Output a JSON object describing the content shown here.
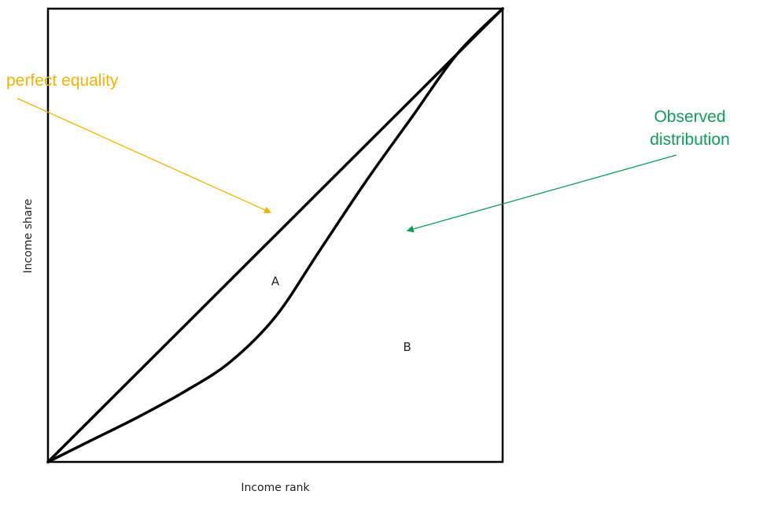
{
  "chart_data": {
    "type": "line",
    "xlabel": "Income rank",
    "ylabel": "Income share",
    "xlim": [
      0,
      1
    ],
    "ylim": [
      0,
      1
    ],
    "grid": false,
    "series": [
      {
        "x": [
          0,
          1
        ],
        "y": [
          0,
          1
        ]
      },
      {
        "x": [
          0,
          0.1,
          0.2,
          0.3,
          0.4,
          0.5,
          0.6,
          0.7,
          0.8,
          0.9,
          1.0
        ],
        "y": [
          0,
          0.05,
          0.1,
          0.155,
          0.22,
          0.32,
          0.47,
          0.62,
          0.76,
          0.9,
          1.0
        ]
      }
    ],
    "regions": [
      {
        "label": "A",
        "x": 0.5,
        "y": 0.39
      },
      {
        "label": "B",
        "x": 0.79,
        "y": 0.245
      }
    ],
    "annotations": [
      {
        "text": "perfect equality",
        "color": "#f4b400",
        "target": [
          0.49,
          0.55
        ]
      },
      {
        "text": [
          "Observed",
          "distribution"
        ],
        "color": "#0f9d58",
        "target": [
          0.79,
          0.51
        ]
      }
    ]
  }
}
